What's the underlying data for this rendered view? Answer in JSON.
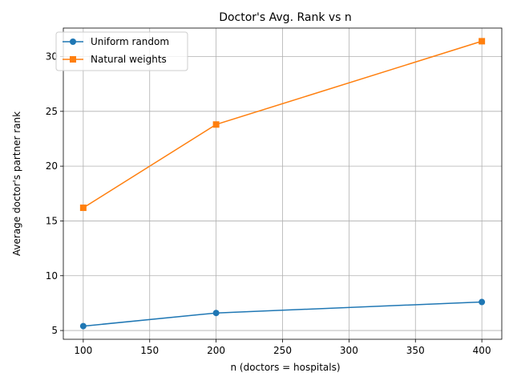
{
  "chart_data": {
    "type": "line",
    "title": "Doctor's Avg. Rank vs n",
    "xlabel": "n (doctors = hospitals)",
    "ylabel": "Average doctor's partner rank",
    "xlim": [
      85,
      415
    ],
    "ylim": [
      4.2,
      32.6
    ],
    "xticks": [
      100,
      150,
      200,
      250,
      300,
      350,
      400
    ],
    "yticks": [
      5,
      10,
      15,
      20,
      25,
      30
    ],
    "grid": true,
    "legend_position": "top-left",
    "series": [
      {
        "name": "Uniform random",
        "color": "#1f77b4",
        "marker": "circle",
        "x": [
          100,
          200,
          400
        ],
        "y": [
          5.4,
          6.6,
          7.6
        ]
      },
      {
        "name": "Natural weights",
        "color": "#ff7f0e",
        "marker": "square",
        "x": [
          100,
          200,
          400
        ],
        "y": [
          16.2,
          23.8,
          31.4
        ]
      }
    ]
  }
}
